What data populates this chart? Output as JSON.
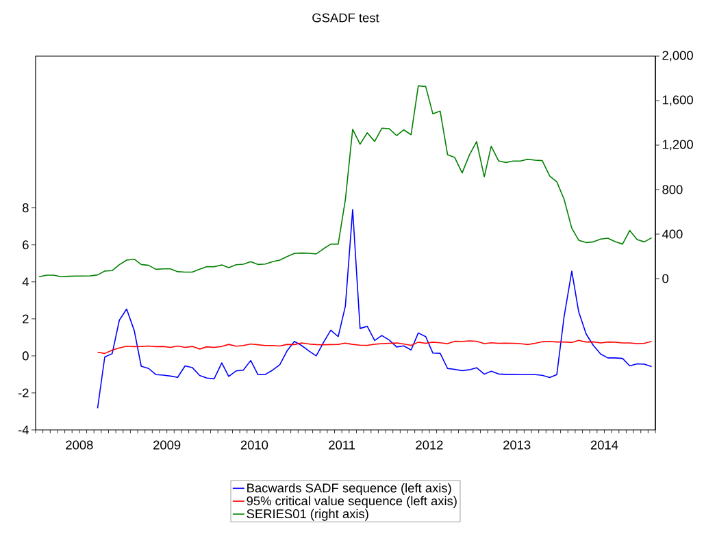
{
  "chart_data": {
    "type": "line",
    "title": "GSADF test",
    "x": [
      "2008-01-16",
      "2008-02-16",
      "2008-03-16",
      "2008-04-16",
      "2008-05-16",
      "2008-06-16",
      "2008-07-16",
      "2008-08-16",
      "2008-09-16",
      "2008-10-16",
      "2008-11-16",
      "2008-12-16",
      "2009-01-16",
      "2009-02-16",
      "2009-03-16",
      "2009-04-16",
      "2009-05-16",
      "2009-06-16",
      "2009-07-16",
      "2009-08-16",
      "2009-09-16",
      "2009-10-16",
      "2009-11-16",
      "2009-12-16",
      "2010-01-16",
      "2010-02-16",
      "2010-03-16",
      "2010-04-16",
      "2010-05-16",
      "2010-06-16",
      "2010-07-16",
      "2010-08-16",
      "2010-09-16",
      "2010-10-16",
      "2010-11-16",
      "2010-12-16",
      "2011-01-16",
      "2011-02-16",
      "2011-03-16",
      "2011-04-16",
      "2011-05-16",
      "2011-06-16",
      "2011-07-16",
      "2011-08-16",
      "2011-09-16",
      "2011-10-16",
      "2011-11-16",
      "2011-12-16",
      "2012-01-16",
      "2012-02-16",
      "2012-03-16",
      "2012-04-16",
      "2012-05-16",
      "2012-06-16",
      "2012-07-16",
      "2012-08-16",
      "2012-09-16",
      "2012-10-16",
      "2012-11-16",
      "2012-12-16",
      "2013-01-16",
      "2013-02-16",
      "2013-03-16",
      "2013-04-16",
      "2013-05-16",
      "2013-06-16",
      "2013-07-16",
      "2013-08-16",
      "2013-09-16",
      "2013-10-16",
      "2013-11-16",
      "2013-12-16",
      "2014-01-16",
      "2014-02-16",
      "2014-03-16",
      "2014-04-16",
      "2014-05-16",
      "2014-06-16",
      "2014-07-16",
      "2014-08-16",
      "2014-09-16",
      "2014-10-16",
      "2014-11-16",
      "2014-12-16",
      "2015-01-16"
    ],
    "series": [
      {
        "name": "Bacwards SADF sequence (left axis)",
        "color": "#0000ff",
        "values": [
          null,
          null,
          null,
          null,
          null,
          null,
          null,
          null,
          -2.83,
          -0.06,
          0.12,
          1.93,
          2.53,
          1.36,
          -0.56,
          -0.68,
          -1.01,
          -1.04,
          -1.09,
          -1.16,
          -0.54,
          -0.63,
          -1.06,
          -1.2,
          -1.24,
          -0.38,
          -1.11,
          -0.81,
          -0.77,
          -0.25,
          -1.01,
          -1.01,
          -0.77,
          -0.48,
          0.28,
          0.78,
          0.56,
          0.25,
          0,
          0.74,
          1.39,
          1.04,
          2.69,
          7.91,
          1.48,
          1.6,
          0.83,
          1.1,
          0.86,
          0.48,
          0.54,
          0.32,
          1.24,
          1.04,
          0.15,
          0.14,
          -0.68,
          -0.73,
          -0.8,
          -0.75,
          -0.64,
          -0.99,
          -0.83,
          -0.98,
          -1,
          -1,
          -1.01,
          -1.01,
          -1.01,
          -1.05,
          -1.17,
          -1.01,
          2.13,
          4.58,
          2.38,
          1.19,
          0.57,
          0.1,
          -0.11,
          -0.11,
          -0.14,
          -0.54,
          -0.43,
          -0.45,
          -0.58
        ]
      },
      {
        "name": "95% critical value sequence (left axis)",
        "color": "#ff0000",
        "values": [
          null,
          null,
          null,
          null,
          null,
          null,
          null,
          null,
          0.2,
          0.13,
          0.31,
          0.43,
          0.52,
          0.5,
          0.51,
          0.53,
          0.5,
          0.51,
          0.46,
          0.53,
          0.46,
          0.51,
          0.37,
          0.49,
          0.46,
          0.51,
          0.62,
          0.52,
          0.56,
          0.64,
          0.6,
          0.56,
          0.56,
          0.53,
          0.62,
          0.61,
          0.7,
          0.64,
          0.61,
          0.6,
          0.61,
          0.62,
          0.69,
          0.62,
          0.58,
          0.57,
          0.63,
          0.66,
          0.68,
          0.7,
          0.64,
          0.57,
          0.74,
          0.68,
          0.74,
          0.71,
          0.66,
          0.79,
          0.78,
          0.81,
          0.79,
          0.66,
          0.71,
          0.68,
          0.69,
          0.68,
          0.66,
          0.61,
          0.68,
          0.76,
          0.78,
          0.75,
          0.75,
          0.73,
          0.84,
          0.75,
          0.76,
          0.7,
          0.75,
          0.74,
          0.7,
          0.7,
          0.66,
          0.68,
          0.78
        ]
      },
      {
        "name": "SERIES01 (right axis)",
        "color": "#008000",
        "axis": "y2",
        "values": [
          17,
          31,
          31,
          17,
          21,
          23,
          23,
          25,
          33,
          68,
          72,
          125,
          166,
          174,
          127,
          119,
          84,
          88,
          88,
          62,
          58,
          58,
          84,
          107,
          107,
          123,
          98,
          125,
          129,
          152,
          127,
          131,
          152,
          166,
          199,
          226,
          230,
          228,
          222,
          269,
          310,
          310,
          710,
          1342,
          1208,
          1311,
          1233,
          1352,
          1348,
          1286,
          1337,
          1294,
          1733,
          1727,
          1481,
          1506,
          1114,
          1089,
          950,
          1110,
          1231,
          915,
          1190,
          1058,
          1044,
          1057,
          1057,
          1073,
          1065,
          1061,
          923,
          870,
          712,
          453,
          345,
          324,
          330,
          355,
          363,
          332,
          310,
          433,
          351,
          330,
          367
        ]
      }
    ],
    "xlim": [
      "2008-01-01",
      "2015-02-01"
    ],
    "xticks": [
      {
        "value": "2008-07",
        "label": "2008"
      },
      {
        "value": "2009-01",
        "label": null
      },
      {
        "value": "2009-07",
        "label": "2009"
      },
      {
        "value": "2010-01",
        "label": null
      },
      {
        "value": "2010-07",
        "label": "2010"
      },
      {
        "value": "2011-01",
        "label": null
      },
      {
        "value": "2011-07",
        "label": "2011"
      },
      {
        "value": "2012-01",
        "label": null
      },
      {
        "value": "2012-07",
        "label": "2012"
      },
      {
        "value": "2013-01",
        "label": null
      },
      {
        "value": "2013-07",
        "label": "2013"
      },
      {
        "value": "2014-01",
        "label": null
      },
      {
        "value": "2014-07",
        "label": "2014"
      },
      {
        "value": "2015-01",
        "label": null
      }
    ],
    "ylim": [
      -4,
      16.2
    ],
    "yticks": [
      -4,
      -2,
      0,
      2,
      4,
      6,
      8
    ],
    "y2lim": [
      -1360,
      2000
    ],
    "y2ticks": [
      0,
      400,
      800,
      {
        "value": 1200,
        "label": "1,200"
      },
      {
        "value": 1600,
        "label": "1,600"
      },
      {
        "value": 2000,
        "label": "2,000"
      }
    ],
    "legend": "bottom",
    "grid": false,
    "marker": "none",
    "line_style": "solid"
  }
}
